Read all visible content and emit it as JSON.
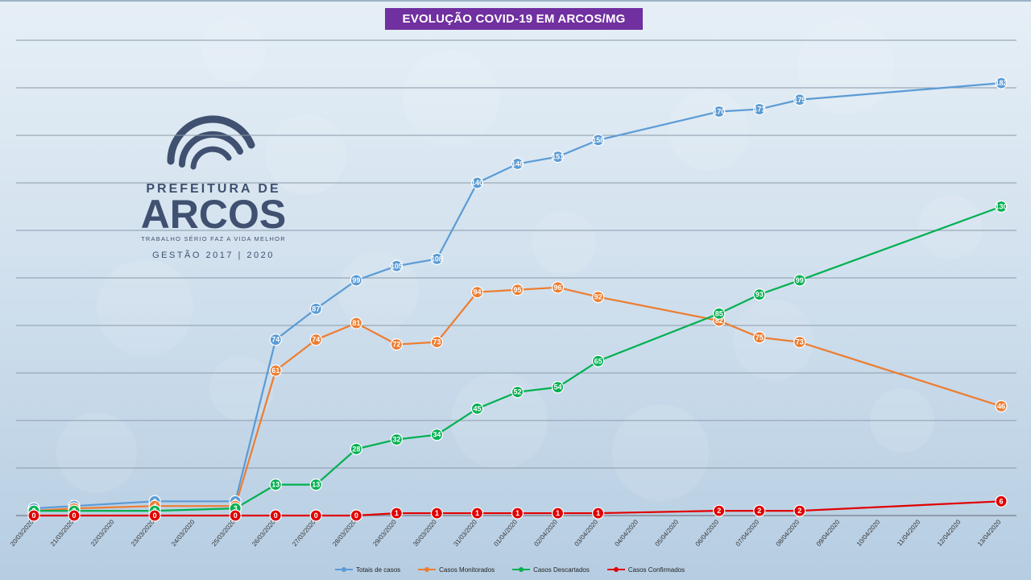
{
  "title": "EVOLUÇÃO COVID-19 EM ARCOS/MG",
  "logo": {
    "line1": "PREFEITURA DE",
    "line2": "ARCOS",
    "tagline": "TRABALHO SÉRIO FAZ A VIDA MELHOR",
    "years": "GESTÃO 2017 | 2020"
  },
  "colors": {
    "totais": "#5b9bd5",
    "monitorados": "#ed7d31",
    "descartados": "#00b050",
    "confirmados": "#e00000",
    "title_bg": "#7030a0"
  },
  "chart_data": {
    "type": "line",
    "title": "EVOLUÇÃO COVID-19 EM ARCOS/MG",
    "xlabel": "",
    "ylabel": "",
    "ylim": [
      0,
      200
    ],
    "grid": true,
    "legend_position": "bottom",
    "categories": [
      "20/03/2020",
      "21/03/2020",
      "22/03/2020",
      "23/03/2020",
      "24/03/2020",
      "25/03/2020",
      "26/03/2020",
      "27/03/2020",
      "28/03/2020",
      "29/03/2020",
      "30/03/2020",
      "31/03/2020",
      "01/04/2020",
      "02/04/2020",
      "03/04/2020",
      "04/04/2020",
      "05/04/2020",
      "06/04/2020",
      "07/04/2020",
      "08/04/2020",
      "09/04/2020",
      "10/04/2020",
      "11/04/2020",
      "12/04/2020",
      "13/04/2020"
    ],
    "series": [
      {
        "name": "Totais de casos",
        "color": "#5b9bd5",
        "values": [
          3,
          4,
          null,
          6,
          null,
          6,
          74,
          87,
          99,
          105,
          108,
          140,
          148,
          151,
          158,
          null,
          null,
          170,
          171,
          175,
          null,
          null,
          null,
          null,
          182
        ]
      },
      {
        "name": "Casos Monitorados",
        "color": "#ed7d31",
        "values": [
          2,
          3,
          null,
          4,
          null,
          4,
          61,
          74,
          81,
          72,
          73,
          94,
          95,
          96,
          92,
          null,
          null,
          82,
          75,
          73,
          null,
          null,
          null,
          null,
          46
        ]
      },
      {
        "name": "Casos Descartados",
        "color": "#00b050",
        "values": [
          2,
          2,
          null,
          2,
          null,
          3,
          13,
          13,
          28,
          32,
          34,
          45,
          52,
          54,
          65,
          null,
          null,
          85,
          93,
          99,
          null,
          null,
          null,
          null,
          130
        ]
      },
      {
        "name": "Casos Confirmados",
        "color": "#e00000",
        "values": [
          0,
          0,
          null,
          0,
          null,
          0,
          0,
          0,
          0,
          1,
          1,
          1,
          1,
          1,
          1,
          null,
          null,
          2,
          2,
          2,
          null,
          null,
          null,
          null,
          6
        ]
      }
    ],
    "point_labels": [
      [
        "3",
        "4",
        null,
        "6",
        null,
        "6",
        "74",
        "87",
        "99",
        "105",
        "108",
        "140",
        "148",
        "151",
        "158",
        null,
        null,
        "170",
        "171",
        "175",
        null,
        null,
        null,
        null,
        "182"
      ],
      [
        "2",
        "3",
        null,
        "4",
        null,
        "4",
        "61",
        "74",
        "81",
        "72",
        "73",
        "94",
        "95",
        "96",
        "92",
        null,
        null,
        "82",
        "75",
        "73",
        null,
        null,
        null,
        null,
        "46"
      ],
      [
        "2",
        "2",
        null,
        "2",
        null,
        "3",
        "13",
        "13",
        "28",
        "32",
        "34",
        "45",
        "52",
        "54",
        "65",
        null,
        null,
        "85",
        "93",
        "99",
        null,
        null,
        null,
        null,
        "130"
      ],
      [
        "0",
        "0",
        null,
        "0",
        null,
        "0",
        "0",
        "0",
        "0",
        "1",
        "1",
        "1",
        "1",
        "1",
        "1",
        null,
        null,
        "2",
        "2",
        "2",
        null,
        null,
        null,
        null,
        "6"
      ]
    ]
  }
}
